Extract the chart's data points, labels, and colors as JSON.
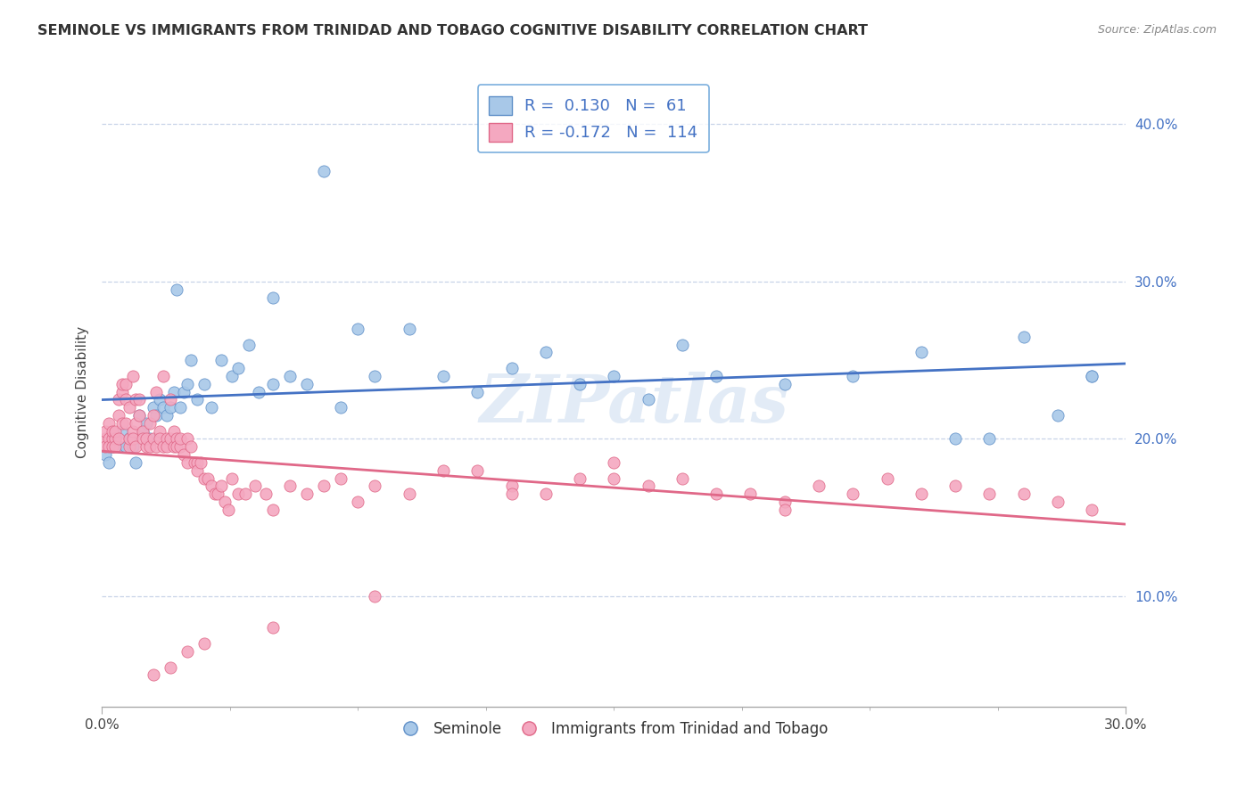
{
  "title": "SEMINOLE VS IMMIGRANTS FROM TRINIDAD AND TOBAGO COGNITIVE DISABILITY CORRELATION CHART",
  "source": "Source: ZipAtlas.com",
  "ylabel": "Cognitive Disability",
  "series": [
    {
      "name": "Seminole",
      "color": "#a8c8e8",
      "edge_color": "#6090c8",
      "R": 0.13,
      "N": 61,
      "trend_color": "#4472c4",
      "x": [
        0.001,
        0.002,
        0.003,
        0.004,
        0.005,
        0.006,
        0.007,
        0.008,
        0.009,
        0.01,
        0.011,
        0.012,
        0.013,
        0.014,
        0.015,
        0.016,
        0.017,
        0.018,
        0.019,
        0.02,
        0.021,
        0.022,
        0.023,
        0.024,
        0.025,
        0.026,
        0.028,
        0.03,
        0.032,
        0.035,
        0.038,
        0.04,
        0.043,
        0.046,
        0.05,
        0.055,
        0.06,
        0.065,
        0.07,
        0.08,
        0.09,
        0.1,
        0.11,
        0.12,
        0.14,
        0.16,
        0.18,
        0.2,
        0.22,
        0.24,
        0.26,
        0.28,
        0.29,
        0.05,
        0.075,
        0.13,
        0.15,
        0.17,
        0.25,
        0.27,
        0.29
      ],
      "y": [
        0.19,
        0.185,
        0.195,
        0.2,
        0.195,
        0.205,
        0.195,
        0.2,
        0.195,
        0.185,
        0.215,
        0.205,
        0.21,
        0.2,
        0.22,
        0.215,
        0.225,
        0.22,
        0.215,
        0.22,
        0.23,
        0.295,
        0.22,
        0.23,
        0.235,
        0.25,
        0.225,
        0.235,
        0.22,
        0.25,
        0.24,
        0.245,
        0.26,
        0.23,
        0.235,
        0.24,
        0.235,
        0.37,
        0.22,
        0.24,
        0.27,
        0.24,
        0.23,
        0.245,
        0.235,
        0.225,
        0.24,
        0.235,
        0.24,
        0.255,
        0.2,
        0.215,
        0.24,
        0.29,
        0.27,
        0.255,
        0.24,
        0.26,
        0.2,
        0.265,
        0.24
      ]
    },
    {
      "name": "Immigrants from Trinidad and Tobago",
      "color": "#f4a8c0",
      "edge_color": "#e06888",
      "R": -0.172,
      "N": 114,
      "trend_color": "#e06888",
      "x": [
        0.001,
        0.001,
        0.001,
        0.002,
        0.002,
        0.002,
        0.003,
        0.003,
        0.003,
        0.004,
        0.004,
        0.004,
        0.005,
        0.005,
        0.005,
        0.006,
        0.006,
        0.006,
        0.007,
        0.007,
        0.007,
        0.008,
        0.008,
        0.008,
        0.009,
        0.009,
        0.009,
        0.01,
        0.01,
        0.01,
        0.011,
        0.011,
        0.012,
        0.012,
        0.013,
        0.013,
        0.014,
        0.014,
        0.015,
        0.015,
        0.016,
        0.016,
        0.017,
        0.017,
        0.018,
        0.018,
        0.019,
        0.019,
        0.02,
        0.02,
        0.021,
        0.021,
        0.022,
        0.022,
        0.023,
        0.023,
        0.024,
        0.025,
        0.025,
        0.026,
        0.027,
        0.028,
        0.028,
        0.029,
        0.03,
        0.031,
        0.032,
        0.033,
        0.034,
        0.035,
        0.036,
        0.037,
        0.038,
        0.04,
        0.042,
        0.045,
        0.048,
        0.05,
        0.055,
        0.06,
        0.065,
        0.07,
        0.075,
        0.08,
        0.09,
        0.1,
        0.11,
        0.12,
        0.13,
        0.14,
        0.15,
        0.16,
        0.17,
        0.18,
        0.19,
        0.2,
        0.21,
        0.22,
        0.23,
        0.24,
        0.25,
        0.26,
        0.27,
        0.28,
        0.29,
        0.15,
        0.2,
        0.12,
        0.08,
        0.05,
        0.03,
        0.025,
        0.02,
        0.015
      ],
      "y": [
        0.2,
        0.195,
        0.205,
        0.2,
        0.195,
        0.21,
        0.2,
        0.195,
        0.205,
        0.2,
        0.205,
        0.195,
        0.215,
        0.2,
        0.225,
        0.21,
        0.23,
        0.235,
        0.225,
        0.21,
        0.235,
        0.22,
        0.195,
        0.2,
        0.24,
        0.205,
        0.2,
        0.225,
        0.195,
        0.21,
        0.225,
        0.215,
        0.205,
        0.2,
        0.195,
        0.2,
        0.21,
        0.195,
        0.215,
        0.2,
        0.23,
        0.195,
        0.205,
        0.2,
        0.24,
        0.195,
        0.2,
        0.195,
        0.225,
        0.2,
        0.205,
        0.195,
        0.2,
        0.195,
        0.195,
        0.2,
        0.19,
        0.2,
        0.185,
        0.195,
        0.185,
        0.185,
        0.18,
        0.185,
        0.175,
        0.175,
        0.17,
        0.165,
        0.165,
        0.17,
        0.16,
        0.155,
        0.175,
        0.165,
        0.165,
        0.17,
        0.165,
        0.155,
        0.17,
        0.165,
        0.17,
        0.175,
        0.16,
        0.17,
        0.165,
        0.18,
        0.18,
        0.17,
        0.165,
        0.175,
        0.175,
        0.17,
        0.175,
        0.165,
        0.165,
        0.16,
        0.17,
        0.165,
        0.175,
        0.165,
        0.17,
        0.165,
        0.165,
        0.16,
        0.155,
        0.185,
        0.155,
        0.165,
        0.1,
        0.08,
        0.07,
        0.065,
        0.055,
        0.05
      ]
    }
  ],
  "xlim": [
    0.0,
    0.3
  ],
  "ylim": [
    0.03,
    0.43
  ],
  "yticks": [
    0.1,
    0.2,
    0.3,
    0.4
  ],
  "ytick_labels": [
    "10.0%",
    "20.0%",
    "30.0%",
    "40.0%"
  ],
  "watermark": "ZIPatlas",
  "background_color": "#ffffff",
  "grid_color": "#c8d4e8",
  "legend_border_color": "#5b9bd5",
  "legend_text_color": "#4472c4"
}
